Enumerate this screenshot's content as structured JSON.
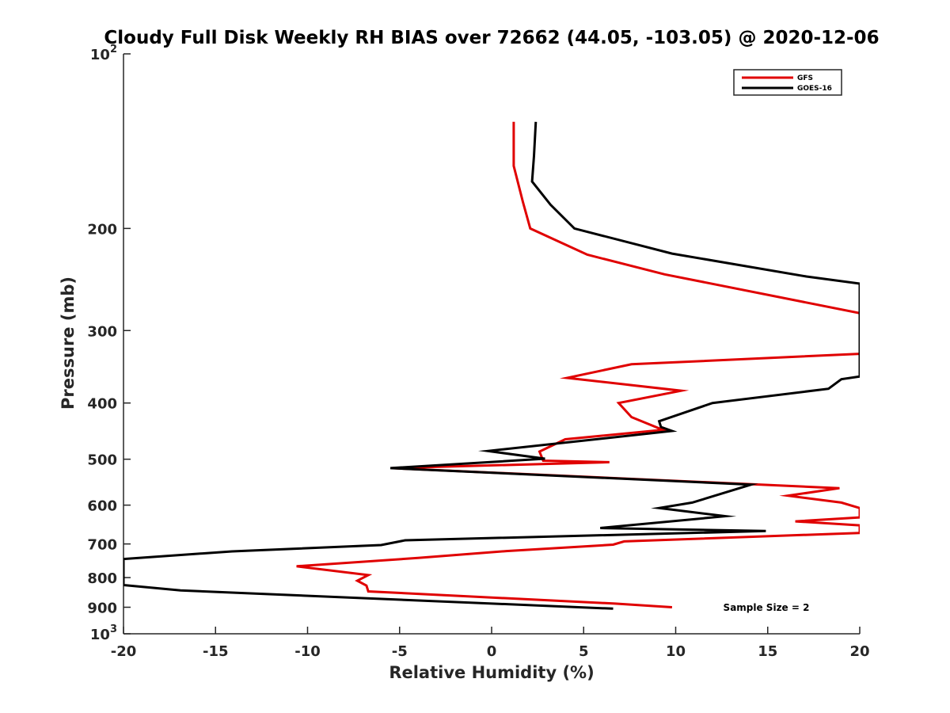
{
  "chart_data": {
    "type": "line",
    "title": "Cloudy Full Disk Weekly RH BIAS over 72662 (44.05, -103.05) @ 2020-12-06",
    "xlabel": "Relative Humidity (%)",
    "ylabel": "Pressure (mb)",
    "xlim": [
      -20,
      20
    ],
    "ylim": [
      100,
      1000
    ],
    "y_scale": "log",
    "y_reversed": true,
    "x_ticks": [
      -20,
      -15,
      -10,
      -5,
      0,
      5,
      10,
      15,
      20
    ],
    "x_tick_labels": [
      "-20",
      "-15",
      "-10",
      "-5",
      "0",
      "5",
      "10",
      "15",
      "20"
    ],
    "y_ticks": [
      100,
      200,
      300,
      400,
      500,
      600,
      700,
      800,
      900,
      1000
    ],
    "y_tick_labels": [
      "10^2",
      "200",
      "300",
      "400",
      "500",
      "600",
      "700",
      "800",
      "900",
      "10^3"
    ],
    "legend_placement": "top-right",
    "grid": false,
    "series": [
      {
        "name": "GFS",
        "color": "#e00000",
        "points": [
          [
            9.8,
            900
          ],
          [
            6.7,
            887
          ],
          [
            -6.7,
            845
          ],
          [
            -6.8,
            826
          ],
          [
            -7.3,
            810
          ],
          [
            -6.7,
            792
          ],
          [
            -10.6,
            765
          ],
          [
            -4,
            740
          ],
          [
            0.8,
            720
          ],
          [
            6.6,
            702
          ],
          [
            7.2,
            693
          ],
          [
            20,
            670
          ],
          [
            20,
            650
          ],
          [
            16.5,
            640
          ],
          [
            20,
            630
          ],
          [
            20,
            607
          ],
          [
            19,
            594
          ],
          [
            16.1,
            578
          ],
          [
            18.9,
            561
          ],
          [
            -5.4,
            518
          ],
          [
            6.4,
            506
          ],
          [
            2.8,
            503
          ],
          [
            2.6,
            485
          ],
          [
            4,
            462
          ],
          [
            9.3,
            445
          ],
          [
            7.6,
            423
          ],
          [
            6.9,
            400
          ],
          [
            10.3,
            381
          ],
          [
            4.1,
            362
          ],
          [
            7.6,
            343
          ],
          [
            20,
            329
          ],
          [
            20,
            280
          ],
          [
            9.4,
            240
          ],
          [
            5.2,
            222
          ],
          [
            2.1,
            200
          ],
          [
            1.7,
            180
          ],
          [
            1.2,
            156
          ],
          [
            1.2,
            131
          ]
        ]
      },
      {
        "name": "GOES-16",
        "color": "#000000",
        "points": [
          [
            6.6,
            905
          ],
          [
            -16.9,
            842
          ],
          [
            -20,
            824
          ],
          [
            -20,
            743
          ],
          [
            -14.1,
            721
          ],
          [
            -6,
            703
          ],
          [
            -4.7,
            690
          ],
          [
            14.9,
            665
          ],
          [
            5.9,
            657
          ],
          [
            12.7,
            627
          ],
          [
            9.1,
            607
          ],
          [
            10.9,
            594
          ],
          [
            14.1,
            553
          ],
          [
            -5.5,
            518
          ],
          [
            2.9,
            499
          ],
          [
            -0.2,
            484
          ],
          [
            9.8,
            447
          ],
          [
            9.2,
            440
          ],
          [
            9.1,
            430
          ],
          [
            12,
            400
          ],
          [
            18.3,
            378
          ],
          [
            19,
            364
          ],
          [
            20,
            360
          ],
          [
            20,
            249
          ],
          [
            17.1,
            242
          ],
          [
            9.8,
            221
          ],
          [
            4.5,
            200
          ],
          [
            3.2,
            182
          ],
          [
            2.2,
            166
          ],
          [
            2.3,
            150
          ],
          [
            2.4,
            131
          ]
        ]
      }
    ],
    "annotation": "Sample Size = 2"
  }
}
